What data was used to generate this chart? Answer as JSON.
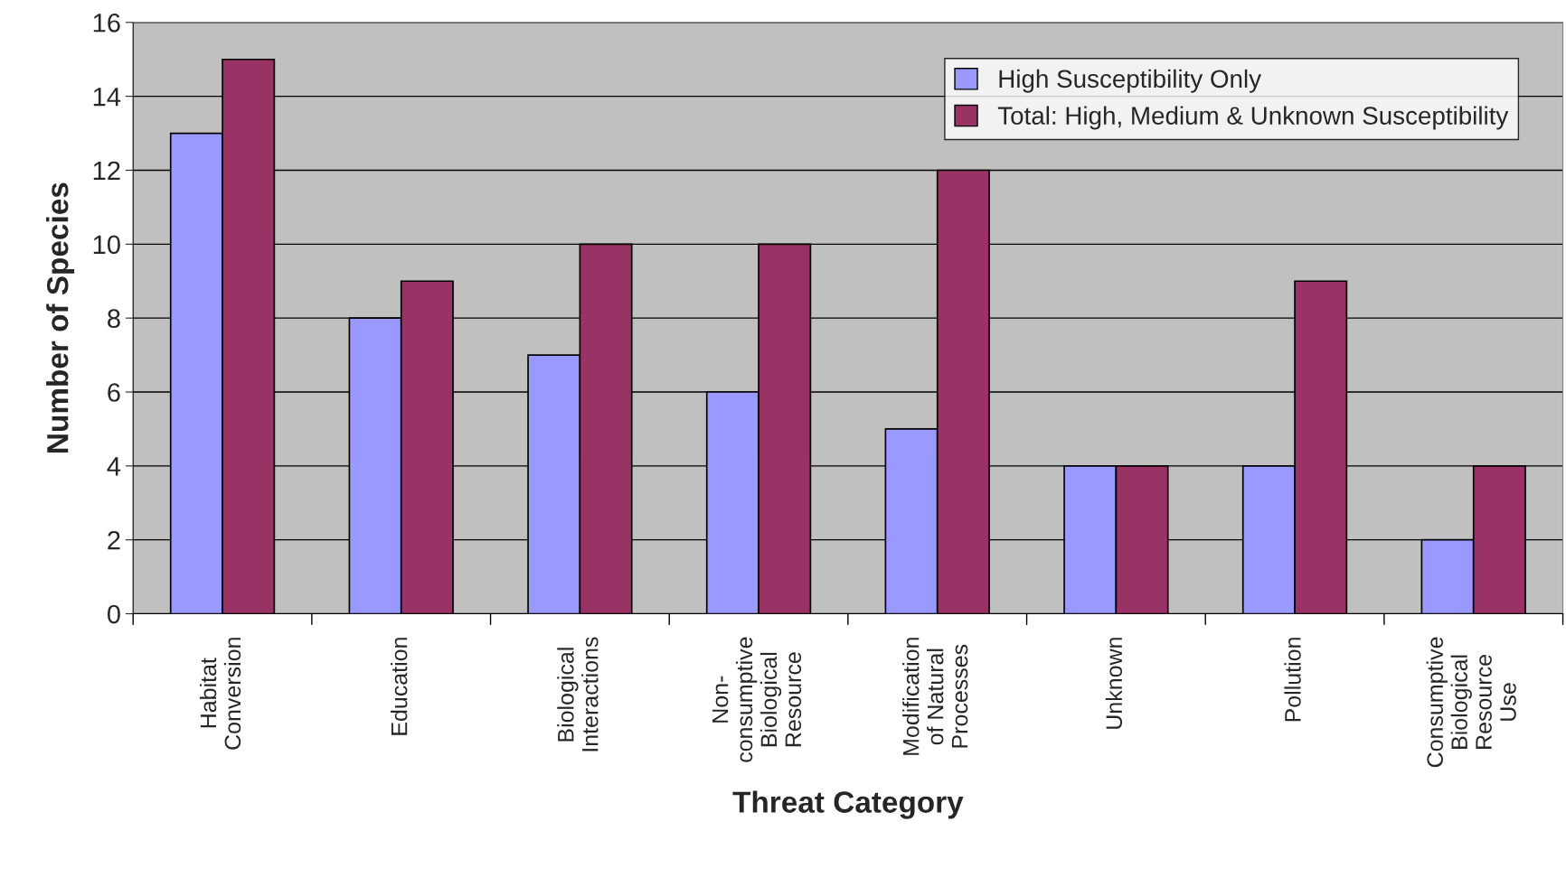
{
  "chart_data": {
    "type": "bar",
    "xlabel": "Threat Category",
    "ylabel": "Number of Species",
    "categories": [
      "Habitat\nConversion",
      "Education",
      "Biological\nInteractions",
      "Non-\nconsumptive\nBiological\nResource",
      "Modification\nof Natural\nProcesses",
      "Unknown",
      "Pollution",
      "Consumptive\nBiological\nResource\nUse"
    ],
    "series": [
      {
        "name": "High Susceptibility Only",
        "color": "#9999ff",
        "values": [
          13,
          8,
          7,
          6,
          5,
          4,
          4,
          2
        ]
      },
      {
        "name": "Total: High, Medium & Unknown Susceptibility",
        "color": "#993366",
        "values": [
          15,
          9,
          10,
          10,
          12,
          4,
          9,
          4
        ]
      }
    ],
    "ylim": [
      0,
      16
    ],
    "yticks": [
      0,
      2,
      4,
      6,
      8,
      10,
      12,
      14,
      16
    ],
    "grid": "y",
    "legend": "top right"
  }
}
